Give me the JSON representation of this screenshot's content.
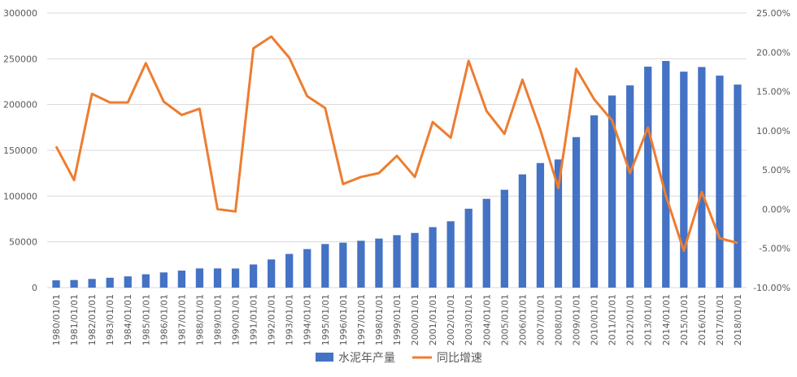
{
  "chart_data": {
    "type": "bar+line",
    "title": "",
    "x": [
      "1980/01/01",
      "1981/01/01",
      "1982/01/01",
      "1983/01/01",
      "1984/01/01",
      "1985/01/01",
      "1986/01/01",
      "1987/01/01",
      "1988/01/01",
      "1989/01/01",
      "1990/01/01",
      "1991/01/01",
      "1992/01/01",
      "1993/01/01",
      "1994/01/01",
      "1995/01/01",
      "1996/01/01",
      "1997/01/01",
      "1998/01/01",
      "1999/01/01",
      "2000/01/01",
      "2001/01/01",
      "2002/01/01",
      "2003/01/01",
      "2004/01/01",
      "2005/01/01",
      "2006/01/01",
      "2007/01/01",
      "2008/01/01",
      "2009/01/01",
      "2010/01/01",
      "2011/01/01",
      "2012/01/01",
      "2013/01/01",
      "2014/01/01",
      "2015/01/01",
      "2016/01/01",
      "2017/01/01",
      "2018/01/01"
    ],
    "series": [
      {
        "name": "水泥年产量",
        "type": "bar",
        "axis": "left",
        "color": "#4472C4",
        "values": [
          8000,
          8300,
          9500,
          10800,
          12300,
          14600,
          16600,
          18600,
          21000,
          21000,
          20900,
          25300,
          30800,
          36800,
          42100,
          47600,
          49100,
          51200,
          53600,
          57300,
          59700,
          66100,
          72500,
          86200,
          97000,
          106900,
          123700,
          136100,
          140000,
          164400,
          188200,
          209900,
          220900,
          241400,
          247600,
          235900,
          241000,
          231600,
          221800
        ]
      },
      {
        "name": "同比增速",
        "type": "line",
        "axis": "right",
        "color": "#ED7D31",
        "values": [
          8.0,
          3.7,
          14.7,
          13.6,
          13.6,
          18.6,
          13.7,
          12.0,
          12.8,
          0.0,
          -0.3,
          20.5,
          22.0,
          19.3,
          14.4,
          12.9,
          3.2,
          4.1,
          4.6,
          6.8,
          4.1,
          11.1,
          9.1,
          18.9,
          12.5,
          9.6,
          16.5,
          10.1,
          2.7,
          17.9,
          14.0,
          11.3,
          4.6,
          10.4,
          1.7,
          -5.3,
          2.2,
          -3.7,
          -4.3
        ]
      }
    ],
    "y_left": {
      "min": 0,
      "max": 300000,
      "ticks": [
        "0",
        "50000",
        "100000",
        "150000",
        "200000",
        "250000",
        "300000"
      ]
    },
    "y_right": {
      "min": -10,
      "max": 25,
      "ticks": [
        "-10.00%",
        "-5.00%",
        "0.00%",
        "5.00%",
        "10.00%",
        "15.00%",
        "20.00%",
        "25.00%"
      ]
    },
    "grid": true,
    "legend": {
      "position": "bottom",
      "entries": [
        "水泥年产量",
        "同比增速"
      ]
    }
  }
}
